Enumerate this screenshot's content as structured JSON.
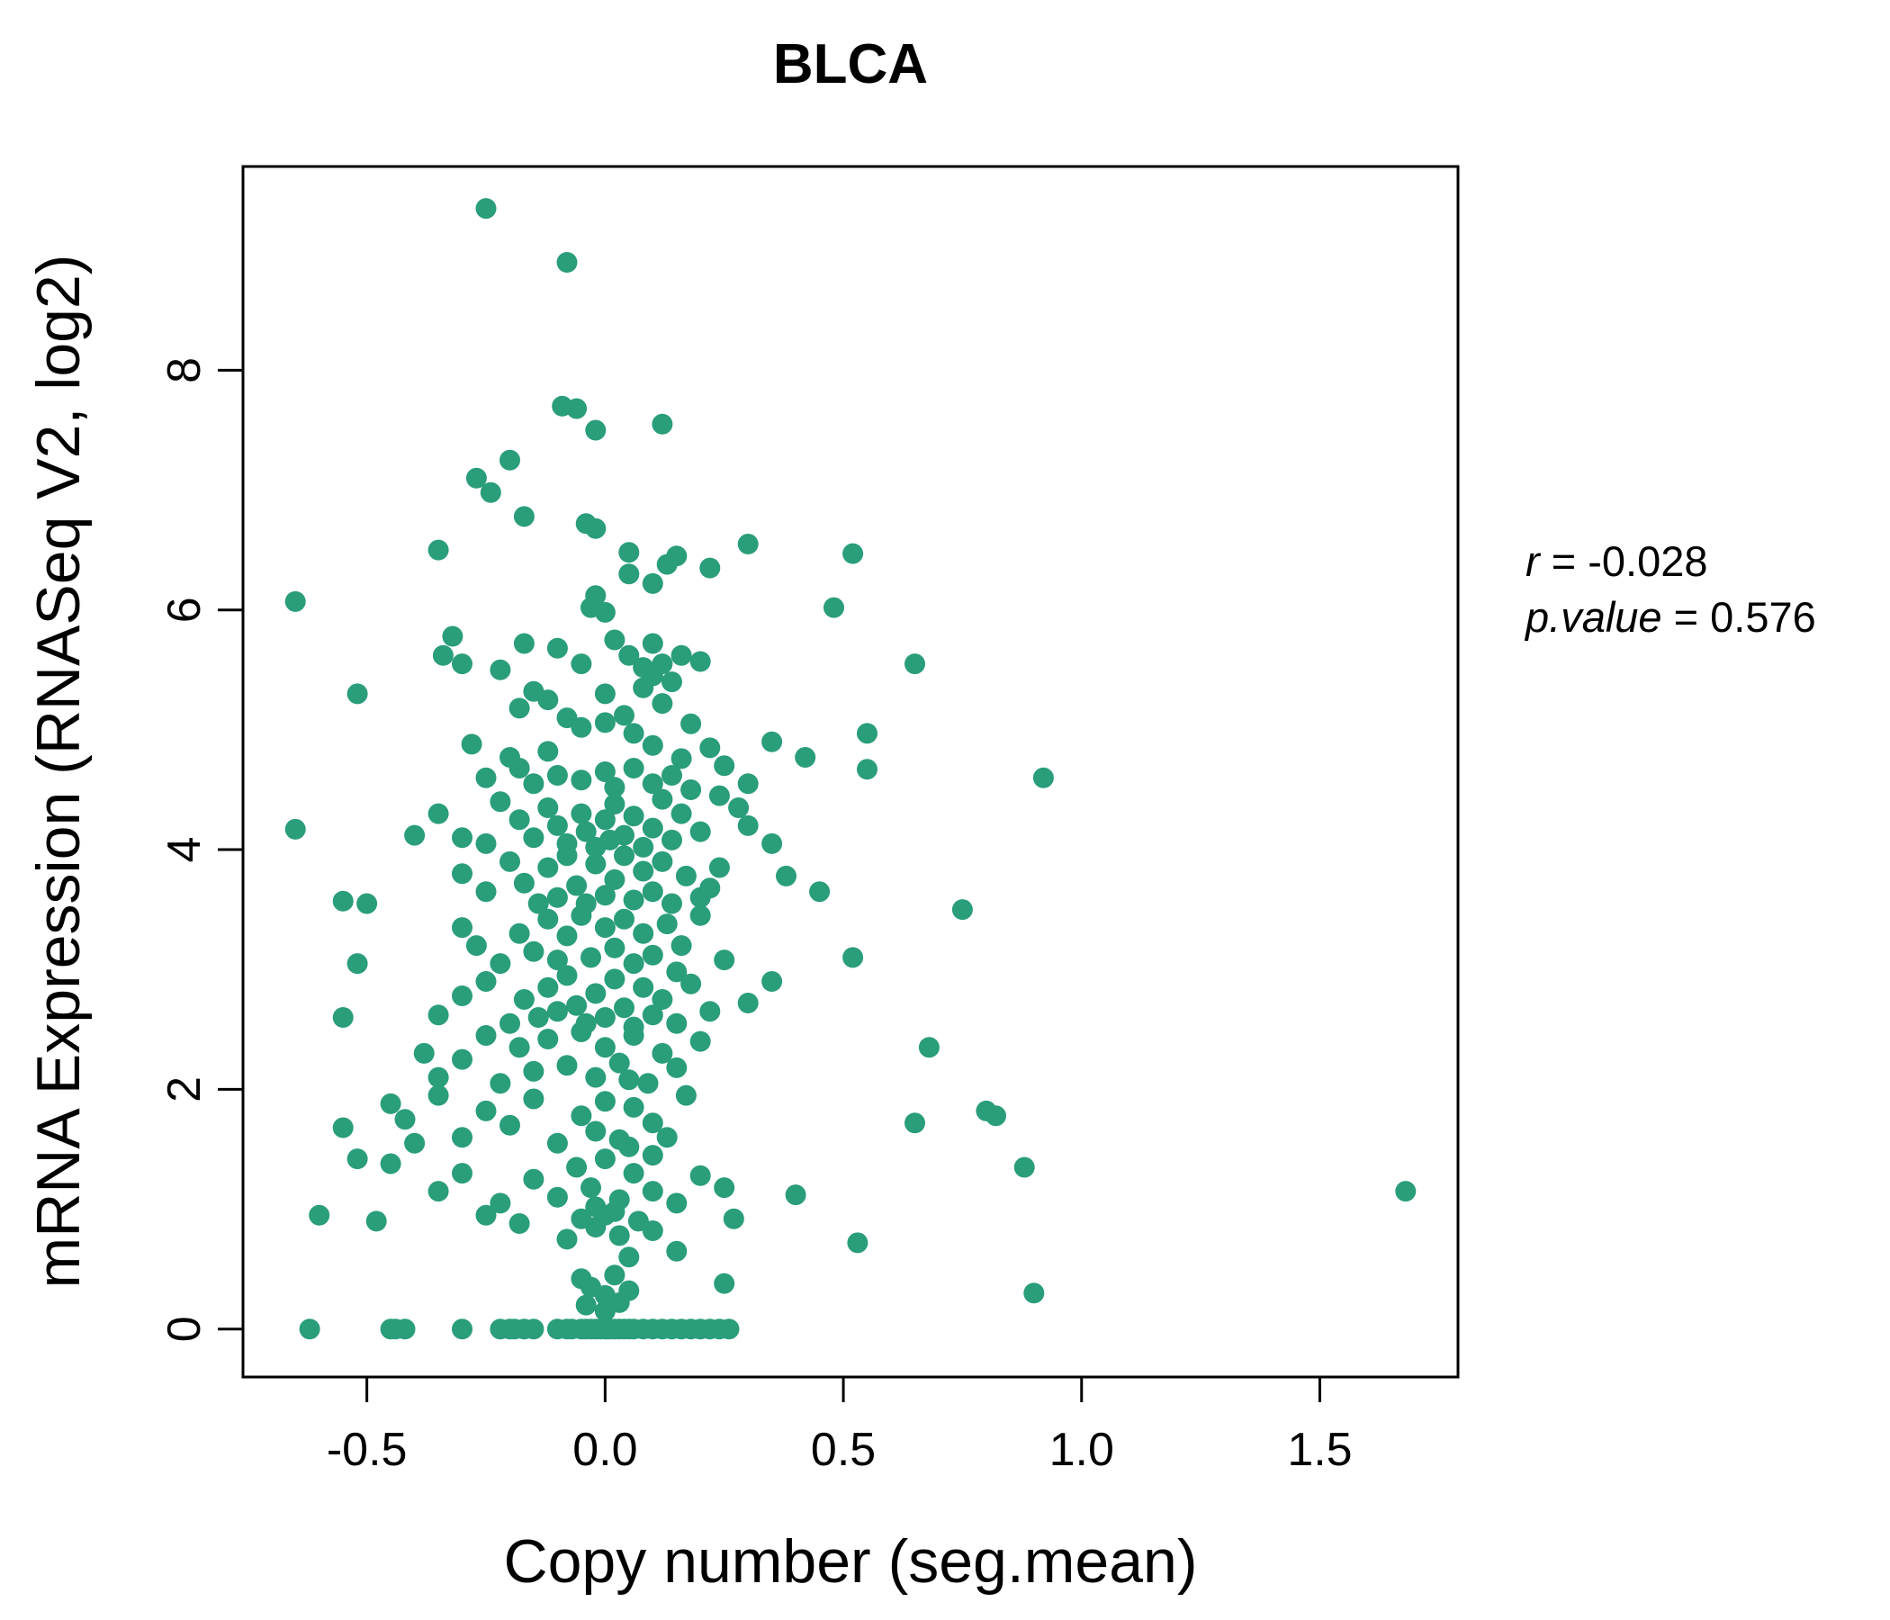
{
  "title": "BLCA",
  "colors": {
    "accent": "#2a9d7a",
    "point": "#2a9d7a",
    "axis": "#000000",
    "background": "#ffffff"
  },
  "annotation": {
    "r_label": "r",
    "r_rest": " = -0.028",
    "p_label": "p.value",
    "p_rest": " = 0.576"
  },
  "chart_data": {
    "type": "scatter",
    "title": "BLCA",
    "xlabel": "Copy number (seg.mean)",
    "ylabel": "mRNA Expression (RNASeq V2, log2)",
    "xlim": [
      -0.76,
      1.79
    ],
    "ylim": [
      -0.4,
      9.7
    ],
    "xticks": [
      -0.5,
      0.0,
      0.5,
      1.0,
      1.5
    ],
    "xtick_labels": [
      "-0.5",
      "0.0",
      "0.5",
      "1.0",
      "1.5"
    ],
    "yticks": [
      0,
      2,
      4,
      6,
      8
    ],
    "ytick_labels": [
      "0",
      "2",
      "4",
      "6",
      "8"
    ],
    "grid": false,
    "legend": "none",
    "stats": {
      "r": -0.028,
      "p_value": 0.576
    },
    "points": [
      [
        -0.25,
        9.35
      ],
      [
        -0.08,
        8.9
      ],
      [
        -0.09,
        7.7
      ],
      [
        -0.06,
        7.68
      ],
      [
        -0.02,
        7.5
      ],
      [
        0.12,
        7.55
      ],
      [
        -0.2,
        7.25
      ],
      [
        -0.27,
        7.1
      ],
      [
        -0.24,
        6.98
      ],
      [
        -0.17,
        6.78
      ],
      [
        -0.04,
        6.72
      ],
      [
        -0.02,
        6.68
      ],
      [
        0.3,
        6.55
      ],
      [
        -0.35,
        6.5
      ],
      [
        0.05,
        6.48
      ],
      [
        0.52,
        6.47
      ],
      [
        0.15,
        6.45
      ],
      [
        0.13,
        6.38
      ],
      [
        0.22,
        6.35
      ],
      [
        -0.65,
        6.07
      ],
      [
        -0.02,
        6.12
      ],
      [
        -0.03,
        6.02
      ],
      [
        0.0,
        5.98
      ],
      [
        0.48,
        6.02
      ],
      [
        0.1,
        6.22
      ],
      [
        0.05,
        6.3
      ],
      [
        -0.32,
        5.78
      ],
      [
        -0.34,
        5.62
      ],
      [
        -0.3,
        5.55
      ],
      [
        -0.17,
        5.72
      ],
      [
        -0.1,
        5.68
      ],
      [
        0.02,
        5.75
      ],
      [
        0.05,
        5.62
      ],
      [
        0.1,
        5.72
      ],
      [
        0.65,
        5.55
      ],
      [
        0.2,
        5.57
      ],
      [
        0.08,
        5.52
      ],
      [
        0.12,
        5.55
      ],
      [
        -0.05,
        5.55
      ],
      [
        0.16,
        5.62
      ],
      [
        -0.22,
        5.5
      ],
      [
        -0.52,
        5.3
      ],
      [
        -0.15,
        5.32
      ],
      [
        -0.12,
        5.25
      ],
      [
        -0.18,
        5.18
      ],
      [
        0.0,
        5.3
      ],
      [
        0.08,
        5.35
      ],
      [
        0.12,
        5.22
      ],
      [
        0.04,
        5.12
      ],
      [
        -0.05,
        5.02
      ],
      [
        0.0,
        5.06
      ],
      [
        0.06,
        4.97
      ],
      [
        0.1,
        5.45
      ],
      [
        0.14,
        5.4
      ],
      [
        -0.08,
        5.1
      ],
      [
        0.18,
        5.05
      ],
      [
        -0.28,
        4.88
      ],
      [
        -0.2,
        4.77
      ],
      [
        -0.12,
        4.82
      ],
      [
        0.1,
        4.87
      ],
      [
        0.16,
        4.76
      ],
      [
        0.25,
        4.7
      ],
      [
        0.42,
        4.77
      ],
      [
        0.55,
        4.67
      ],
      [
        0.35,
        4.9
      ],
      [
        0.55,
        4.97
      ],
      [
        -0.25,
        4.6
      ],
      [
        -0.15,
        4.55
      ],
      [
        -0.1,
        4.62
      ],
      [
        -0.05,
        4.58
      ],
      [
        0.0,
        4.65
      ],
      [
        0.02,
        4.52
      ],
      [
        0.06,
        4.68
      ],
      [
        0.1,
        4.55
      ],
      [
        0.14,
        4.62
      ],
      [
        0.18,
        4.5
      ],
      [
        0.22,
        4.85
      ],
      [
        0.92,
        4.6
      ],
      [
        0.3,
        4.55
      ],
      [
        -0.18,
        4.68
      ],
      [
        -0.65,
        4.17
      ],
      [
        -0.4,
        4.12
      ],
      [
        -0.35,
        4.3
      ],
      [
        -0.3,
        4.1
      ],
      [
        -0.25,
        4.05
      ],
      [
        -0.22,
        4.4
      ],
      [
        -0.18,
        4.25
      ],
      [
        -0.15,
        4.1
      ],
      [
        -0.12,
        4.35
      ],
      [
        -0.1,
        4.2
      ],
      [
        -0.08,
        4.05
      ],
      [
        -0.05,
        4.3
      ],
      [
        -0.04,
        4.15
      ],
      [
        -0.02,
        4.02
      ],
      [
        0.0,
        4.25
      ],
      [
        0.01,
        4.08
      ],
      [
        0.02,
        4.38
      ],
      [
        0.04,
        4.12
      ],
      [
        0.06,
        4.28
      ],
      [
        0.08,
        4.02
      ],
      [
        0.1,
        4.18
      ],
      [
        0.12,
        4.42
      ],
      [
        0.14,
        4.08
      ],
      [
        0.16,
        4.3
      ],
      [
        0.2,
        4.15
      ],
      [
        0.24,
        4.45
      ],
      [
        0.3,
        4.2
      ],
      [
        0.35,
        4.05
      ],
      [
        0.28,
        4.35
      ],
      [
        -0.55,
        3.57
      ],
      [
        -0.5,
        3.55
      ],
      [
        -0.3,
        3.8
      ],
      [
        -0.25,
        3.65
      ],
      [
        -0.2,
        3.9
      ],
      [
        -0.17,
        3.72
      ],
      [
        -0.14,
        3.55
      ],
      [
        -0.12,
        3.85
      ],
      [
        -0.1,
        3.6
      ],
      [
        -0.08,
        3.95
      ],
      [
        -0.06,
        3.7
      ],
      [
        -0.04,
        3.55
      ],
      [
        -0.02,
        3.88
      ],
      [
        0.0,
        3.62
      ],
      [
        0.02,
        3.75
      ],
      [
        0.04,
        3.95
      ],
      [
        0.06,
        3.58
      ],
      [
        0.08,
        3.82
      ],
      [
        0.1,
        3.65
      ],
      [
        0.12,
        3.9
      ],
      [
        0.14,
        3.55
      ],
      [
        0.17,
        3.78
      ],
      [
        0.2,
        3.6
      ],
      [
        0.24,
        3.85
      ],
      [
        0.38,
        3.78
      ],
      [
        0.45,
        3.65
      ],
      [
        0.75,
        3.5
      ],
      [
        0.22,
        3.68
      ],
      [
        -0.52,
        3.05
      ],
      [
        -0.3,
        3.35
      ],
      [
        -0.27,
        3.2
      ],
      [
        -0.22,
        3.05
      ],
      [
        -0.18,
        3.3
      ],
      [
        -0.15,
        3.15
      ],
      [
        -0.12,
        3.42
      ],
      [
        -0.1,
        3.08
      ],
      [
        -0.08,
        3.28
      ],
      [
        -0.05,
        3.45
      ],
      [
        -0.03,
        3.1
      ],
      [
        0.0,
        3.35
      ],
      [
        0.02,
        3.18
      ],
      [
        0.04,
        3.42
      ],
      [
        0.06,
        3.05
      ],
      [
        0.08,
        3.3
      ],
      [
        0.1,
        3.12
      ],
      [
        0.13,
        3.38
      ],
      [
        0.16,
        3.2
      ],
      [
        0.2,
        3.45
      ],
      [
        0.25,
        3.08
      ],
      [
        0.52,
        3.1
      ],
      [
        0.15,
        2.98
      ],
      [
        -0.55,
        2.6
      ],
      [
        -0.35,
        2.62
      ],
      [
        -0.3,
        2.78
      ],
      [
        -0.25,
        2.9
      ],
      [
        -0.2,
        2.55
      ],
      [
        -0.17,
        2.75
      ],
      [
        -0.14,
        2.6
      ],
      [
        -0.12,
        2.85
      ],
      [
        -0.1,
        2.65
      ],
      [
        -0.08,
        2.95
      ],
      [
        -0.06,
        2.7
      ],
      [
        -0.04,
        2.55
      ],
      [
        -0.02,
        2.8
      ],
      [
        0.0,
        2.6
      ],
      [
        0.02,
        2.92
      ],
      [
        0.04,
        2.68
      ],
      [
        0.06,
        2.52
      ],
      [
        0.08,
        2.85
      ],
      [
        0.1,
        2.62
      ],
      [
        0.12,
        2.75
      ],
      [
        0.15,
        2.55
      ],
      [
        0.18,
        2.88
      ],
      [
        0.22,
        2.65
      ],
      [
        0.3,
        2.72
      ],
      [
        0.35,
        2.9
      ],
      [
        -0.38,
        2.3
      ],
      [
        -0.35,
        2.1
      ],
      [
        -0.3,
        2.25
      ],
      [
        -0.25,
        2.45
      ],
      [
        -0.22,
        2.05
      ],
      [
        -0.18,
        2.35
      ],
      [
        -0.15,
        2.15
      ],
      [
        -0.12,
        2.42
      ],
      [
        -0.08,
        2.2
      ],
      [
        -0.05,
        2.48
      ],
      [
        -0.02,
        2.1
      ],
      [
        0.0,
        2.35
      ],
      [
        0.03,
        2.22
      ],
      [
        0.06,
        2.45
      ],
      [
        0.09,
        2.05
      ],
      [
        0.12,
        2.3
      ],
      [
        0.15,
        2.18
      ],
      [
        0.2,
        2.4
      ],
      [
        0.68,
        2.35
      ],
      [
        0.05,
        2.08
      ],
      [
        -0.55,
        1.68
      ],
      [
        -0.45,
        1.88
      ],
      [
        -0.42,
        1.75
      ],
      [
        -0.35,
        1.95
      ],
      [
        -0.3,
        1.6
      ],
      [
        -0.25,
        1.82
      ],
      [
        -0.2,
        1.7
      ],
      [
        -0.15,
        1.92
      ],
      [
        -0.1,
        1.55
      ],
      [
        -0.05,
        1.78
      ],
      [
        -0.02,
        1.65
      ],
      [
        0.0,
        1.9
      ],
      [
        0.03,
        1.58
      ],
      [
        0.06,
        1.85
      ],
      [
        0.1,
        1.72
      ],
      [
        0.13,
        1.6
      ],
      [
        0.17,
        1.95
      ],
      [
        0.65,
        1.72
      ],
      [
        0.8,
        1.82
      ],
      [
        0.82,
        1.78
      ],
      [
        0.05,
        1.52
      ],
      [
        0.1,
        1.45
      ],
      [
        -0.4,
        1.55
      ],
      [
        -0.52,
        1.42
      ],
      [
        -0.45,
        1.38
      ],
      [
        -0.35,
        1.15
      ],
      [
        -0.3,
        1.3
      ],
      [
        -0.22,
        1.05
      ],
      [
        -0.15,
        1.25
      ],
      [
        -0.1,
        1.1
      ],
      [
        -0.06,
        1.35
      ],
      [
        -0.03,
        1.18
      ],
      [
        0.0,
        1.42
      ],
      [
        0.03,
        1.08
      ],
      [
        0.06,
        1.3
      ],
      [
        0.1,
        1.15
      ],
      [
        0.15,
        1.05
      ],
      [
        0.2,
        1.28
      ],
      [
        0.25,
        1.18
      ],
      [
        0.4,
        1.12
      ],
      [
        0.88,
        1.35
      ],
      [
        1.68,
        1.15
      ],
      [
        -0.02,
        1.02
      ],
      [
        0.02,
        0.98
      ],
      [
        -0.6,
        0.95
      ],
      [
        -0.48,
        0.9
      ],
      [
        -0.25,
        0.95
      ],
      [
        -0.18,
        0.88
      ],
      [
        -0.08,
        0.75
      ],
      [
        -0.05,
        0.92
      ],
      [
        -0.02,
        0.85
      ],
      [
        0.0,
        0.95
      ],
      [
        0.03,
        0.78
      ],
      [
        0.07,
        0.9
      ],
      [
        0.1,
        0.82
      ],
      [
        0.27,
        0.92
      ],
      [
        0.53,
        0.72
      ],
      [
        0.15,
        0.65
      ],
      [
        0.05,
        0.6
      ],
      [
        -0.05,
        0.42
      ],
      [
        -0.03,
        0.35
      ],
      [
        0.0,
        0.28
      ],
      [
        0.02,
        0.45
      ],
      [
        0.05,
        0.32
      ],
      [
        0.25,
        0.38
      ],
      [
        0.9,
        0.3
      ],
      [
        -0.04,
        0.2
      ],
      [
        0.0,
        0.15
      ],
      [
        0.03,
        0.22
      ],
      [
        -0.62,
        0
      ],
      [
        -0.45,
        0
      ],
      [
        -0.44,
        0
      ],
      [
        -0.42,
        0
      ],
      [
        -0.3,
        0
      ],
      [
        -0.22,
        0
      ],
      [
        -0.2,
        0
      ],
      [
        -0.19,
        0
      ],
      [
        -0.17,
        0
      ],
      [
        -0.15,
        0
      ],
      [
        -0.1,
        0
      ],
      [
        -0.08,
        0
      ],
      [
        -0.07,
        0
      ],
      [
        -0.05,
        0
      ],
      [
        -0.04,
        0
      ],
      [
        -0.03,
        0
      ],
      [
        -0.02,
        0
      ],
      [
        -0.01,
        0
      ],
      [
        0.0,
        0
      ],
      [
        0.005,
        0
      ],
      [
        0.01,
        0
      ],
      [
        0.02,
        0
      ],
      [
        0.03,
        0
      ],
      [
        0.04,
        0
      ],
      [
        0.05,
        0
      ],
      [
        0.06,
        0
      ],
      [
        0.08,
        0
      ],
      [
        0.1,
        0
      ],
      [
        0.12,
        0
      ],
      [
        0.14,
        0
      ],
      [
        0.16,
        0
      ],
      [
        0.18,
        0
      ],
      [
        0.2,
        0
      ],
      [
        0.22,
        0
      ],
      [
        0.24,
        0
      ],
      [
        0.26,
        0
      ]
    ]
  }
}
